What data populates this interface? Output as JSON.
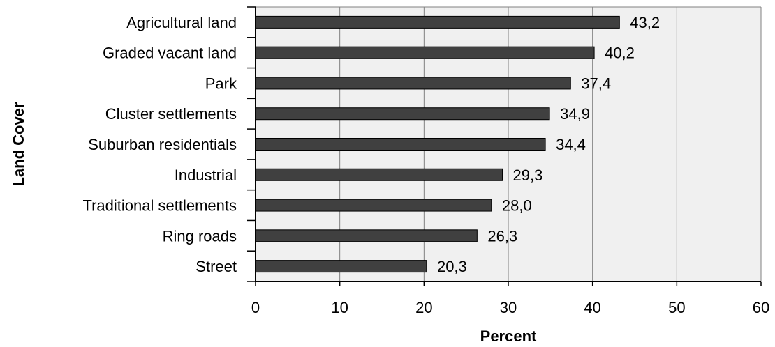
{
  "chart_data": {
    "type": "bar",
    "orientation": "horizontal",
    "categories": [
      "Agricultural land",
      "Graded vacant land",
      "Park",
      "Cluster settlements",
      "Suburban residentials",
      "Industrial",
      "Traditional settlements",
      "Ring roads",
      "Street"
    ],
    "values": [
      43.2,
      40.2,
      37.4,
      34.9,
      34.4,
      29.3,
      28.0,
      26.3,
      20.3
    ],
    "value_labels": [
      "43,2",
      "40,2",
      "37,4",
      "34,9",
      "34,4",
      "29,3",
      "28,0",
      "26,3",
      "20,3"
    ],
    "xlabel": "Percent",
    "ylabel": "Land Cover",
    "xlim": [
      0,
      60
    ],
    "xticks": [
      "0",
      "10",
      "20",
      "30",
      "40",
      "50",
      "60"
    ],
    "grid": "vertical",
    "legend": "none",
    "colors": {
      "bar": "#404040",
      "bar_edge": "#000000",
      "plot_background": "#f0f0f0",
      "grid": "#808080"
    }
  }
}
